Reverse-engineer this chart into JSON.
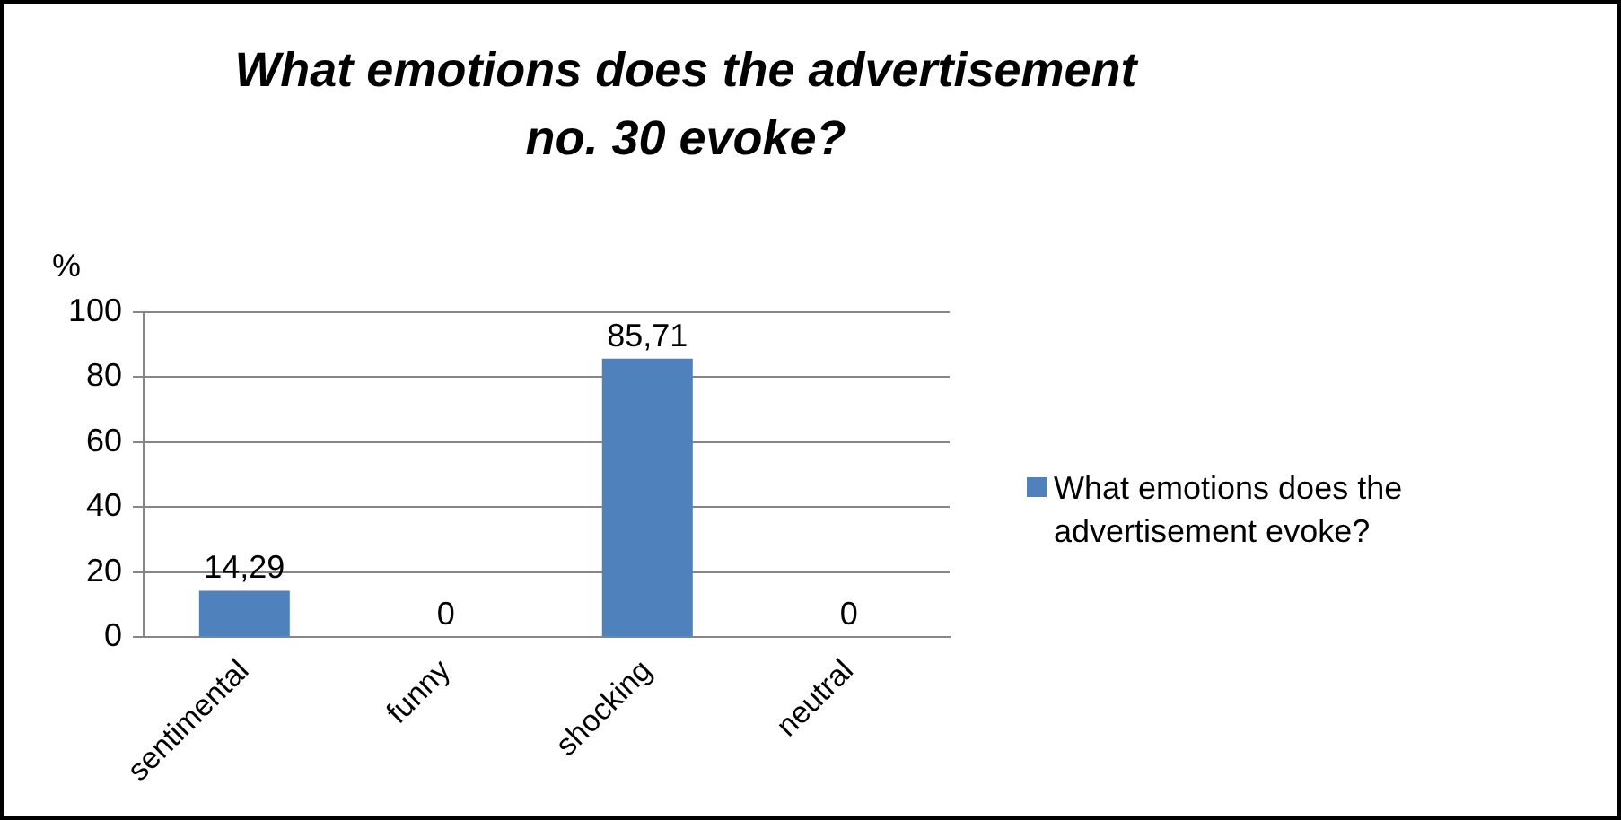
{
  "chart_data": {
    "type": "bar",
    "title": "What emotions does the advertisement no. 30 evoke?",
    "ylabel": "%",
    "categories": [
      "sentimental",
      "funny",
      "shocking",
      "neutral"
    ],
    "series": [
      {
        "name": "What emotions does the advertisement evoke?",
        "color": "#4f81bd",
        "values": [
          14.29,
          0,
          85.71,
          0
        ],
        "value_labels": [
          "14,29",
          "0",
          "85,71",
          "0"
        ]
      }
    ],
    "ylim": [
      0,
      100
    ],
    "yticks": [
      0,
      20,
      40,
      60,
      80,
      100
    ],
    "grid": "y",
    "legend": "right"
  }
}
